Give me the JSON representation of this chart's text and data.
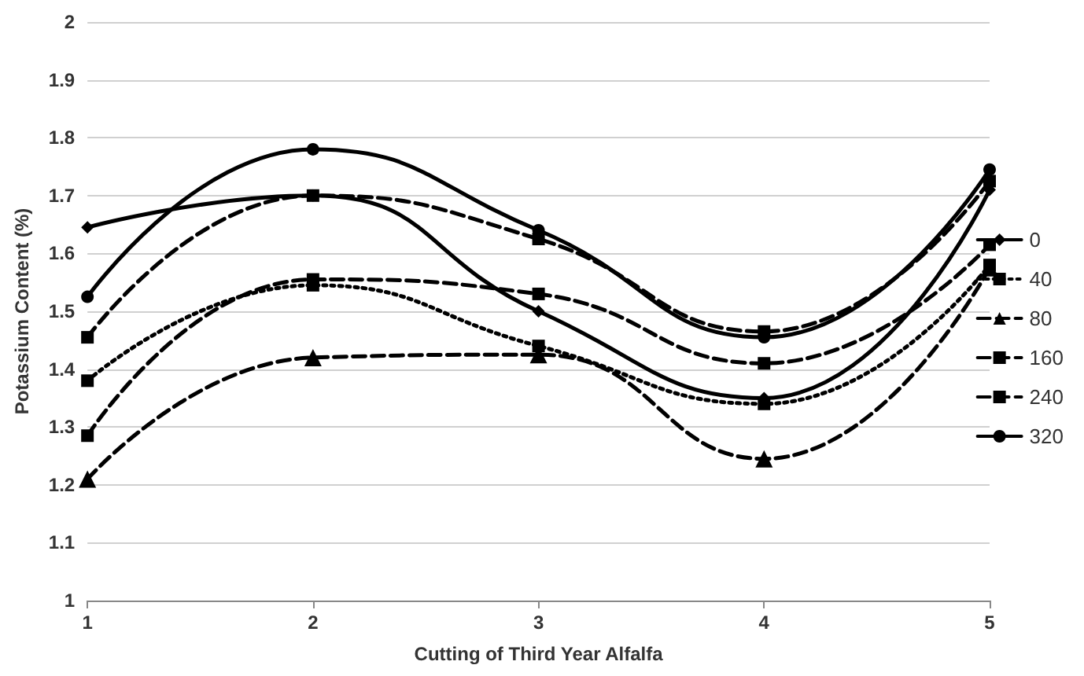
{
  "chart_data": {
    "type": "line",
    "xlabel": "Cutting of Third Year Alfalfa",
    "ylabel": "Potassium Content (%)",
    "x": [
      1,
      2,
      3,
      4,
      5
    ],
    "series": [
      {
        "name": "0",
        "color": "#000000",
        "marker": "diamond",
        "line_style": "solid",
        "values": [
          1.645,
          1.7,
          1.5,
          1.35,
          1.71
        ]
      },
      {
        "name": "40",
        "color": "#000000",
        "marker": "square",
        "line_style": "dotted",
        "values": [
          1.38,
          1.545,
          1.44,
          1.34,
          1.58
        ]
      },
      {
        "name": "80",
        "color": "#000000",
        "marker": "triangle",
        "line_style": "dashed",
        "values": [
          1.21,
          1.42,
          1.425,
          1.245,
          1.575
        ]
      },
      {
        "name": "160",
        "color": "#000000",
        "marker": "square",
        "line_style": "dashed",
        "values": [
          1.285,
          1.555,
          1.53,
          1.41,
          1.615
        ]
      },
      {
        "name": "240",
        "color": "#000000",
        "marker": "square",
        "line_style": "dashed",
        "values": [
          1.455,
          1.7,
          1.625,
          1.465,
          1.725
        ]
      },
      {
        "name": "320",
        "color": "#000000",
        "marker": "circle",
        "line_style": "solid",
        "values": [
          1.525,
          1.78,
          1.64,
          1.455,
          1.745
        ]
      }
    ],
    "xlim": [
      1,
      5
    ],
    "xticks": [
      1,
      2,
      3,
      4,
      5
    ],
    "ylim": [
      1,
      2
    ],
    "yticks": [
      1,
      1.1,
      1.2,
      1.3,
      1.4,
      1.5,
      1.6,
      1.7,
      1.8,
      1.9,
      2
    ],
    "grid": "y",
    "legend": "right"
  }
}
